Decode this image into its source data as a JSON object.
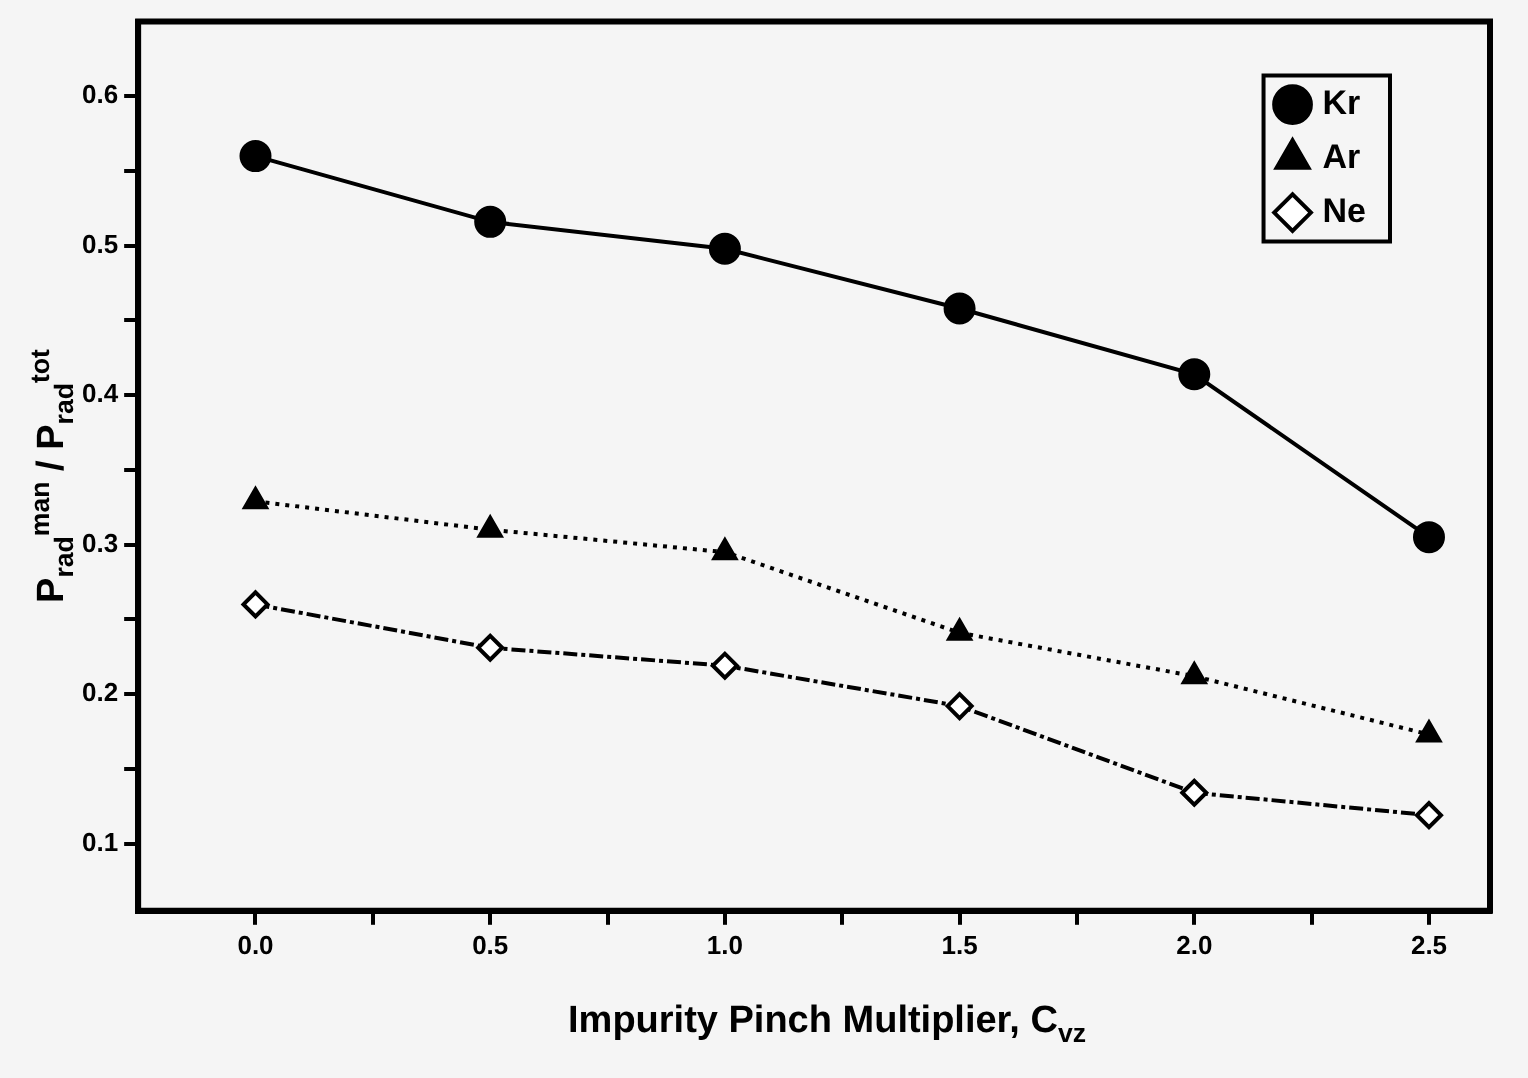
{
  "chart_data": {
    "type": "line",
    "xlabel": "Impurity Pinch Multiplier, C$_{vz}$",
    "ylabel": "P$_{rad}$$^{man}$ / P$_{rad}$$^{tot}$",
    "x": [
      0,
      0.5,
      1,
      1.5,
      2,
      2.5
    ],
    "series": [
      {
        "name": "Kr",
        "color": "#000000",
        "marker": "circle",
        "line_style": "solid",
        "values": [
          0.56,
          0.516,
          0.498,
          0.458,
          0.414,
          0.305
        ]
      },
      {
        "name": "Ar",
        "color": "#000000",
        "marker": "triangle",
        "line_style": "dotted",
        "values": [
          0.329,
          0.31,
          0.295,
          0.241,
          0.212,
          0.173
        ]
      },
      {
        "name": "Ne",
        "color": "#000000",
        "marker": "diamond",
        "line_style": "dashed",
        "values": [
          0.26,
          0.231,
          0.219,
          0.192,
          0.134,
          0.119
        ]
      }
    ],
    "xlim": [
      -0.25,
      2.63
    ],
    "ylim": [
      0.055,
      0.65
    ],
    "xticks": [
      {
        "value": 0,
        "label": "0.0"
      },
      {
        "value": 0.25,
        "label": null
      },
      {
        "value": 0.5,
        "label": "0.5"
      },
      {
        "value": 0.75,
        "label": null
      },
      {
        "value": 1,
        "label": "1.0"
      },
      {
        "value": 1.25,
        "label": null
      },
      {
        "value": 1.5,
        "label": "1.5"
      },
      {
        "value": 1.75,
        "label": null
      },
      {
        "value": 2,
        "label": "2.0"
      },
      {
        "value": 2.25,
        "label": null
      },
      {
        "value": 2.5,
        "label": "2.5"
      }
    ],
    "yticks": [
      0.1,
      {
        "value": 0.15,
        "label": null
      },
      0.2,
      {
        "value": 0.25,
        "label": null
      },
      0.3,
      {
        "value": 0.35,
        "label": null
      },
      0.4,
      {
        "value": 0.45,
        "label": null
      },
      0.5,
      {
        "value": 0.55,
        "label": null
      },
      0.6
    ],
    "grid": false,
    "legend": "top right"
  }
}
